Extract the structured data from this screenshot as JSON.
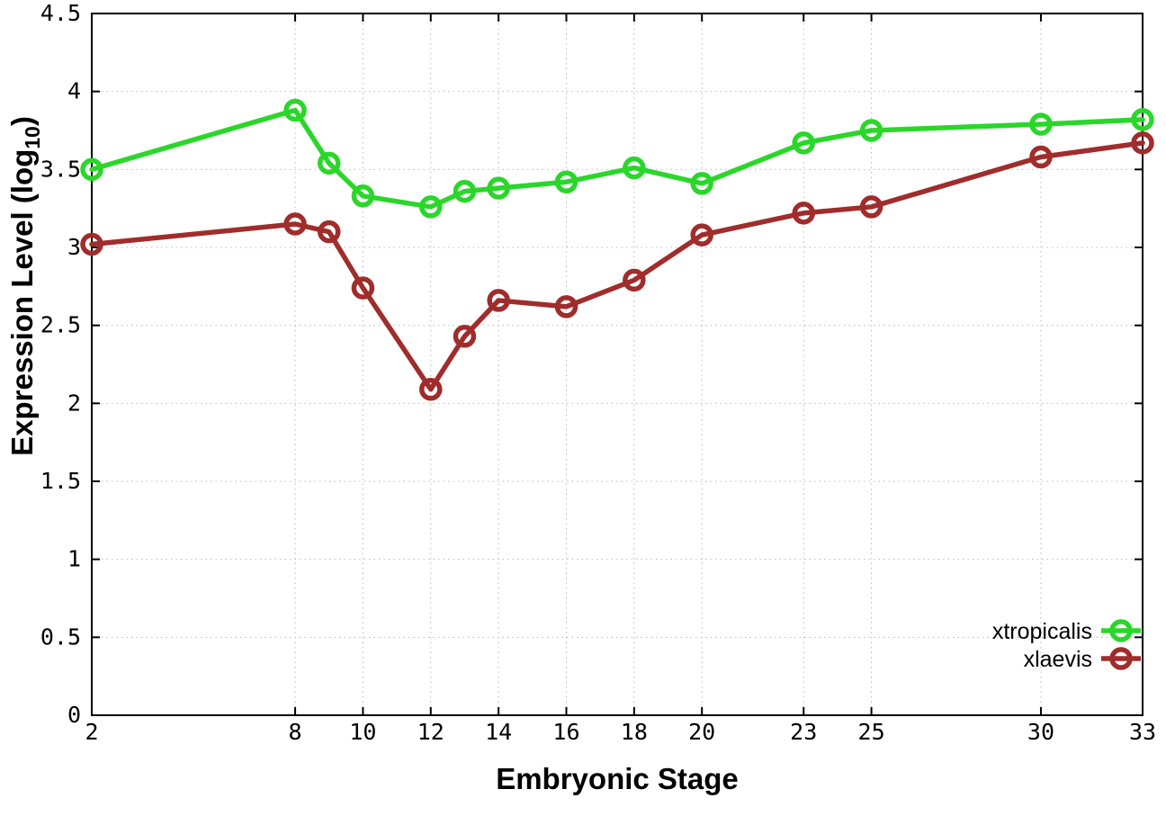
{
  "chart_data": {
    "type": "line",
    "title": "",
    "xlabel": "Embryonic Stage",
    "ylabel": "Expression Level (log10)",
    "ylabel_parts": {
      "prefix": "Expression Level (log",
      "sub": "10",
      "suffix": ")"
    },
    "x": [
      2,
      8,
      9,
      10,
      12,
      13,
      14,
      16,
      18,
      20,
      23,
      25,
      30,
      33
    ],
    "series": [
      {
        "name": "xtropicalis",
        "color": "#2bd62b",
        "marker": "open-circle",
        "values": [
          3.5,
          3.88,
          3.54,
          3.33,
          3.26,
          3.36,
          3.38,
          3.42,
          3.51,
          3.41,
          3.67,
          3.75,
          3.79,
          3.82
        ]
      },
      {
        "name": "xlaevis",
        "color": "#a02c2c",
        "marker": "open-circle",
        "values": [
          3.02,
          3.15,
          3.1,
          2.74,
          2.09,
          2.43,
          2.66,
          2.62,
          2.79,
          3.08,
          3.22,
          3.26,
          3.58,
          3.67
        ]
      }
    ],
    "x_ticks": [
      2,
      8,
      10,
      12,
      14,
      16,
      18,
      20,
      23,
      25,
      30,
      33
    ],
    "x_tick_labels": [
      "2",
      "8",
      "10",
      "12",
      "14",
      "16",
      "18",
      "20",
      "23",
      "25",
      "30",
      "33"
    ],
    "y_ticks": [
      0,
      0.5,
      1,
      1.5,
      2,
      2.5,
      3,
      3.5,
      4,
      4.5
    ],
    "y_tick_labels": [
      "0",
      "0.5",
      "1",
      "1.5",
      "2",
      "2.5",
      "3",
      "3.5",
      "4",
      "4.5"
    ],
    "xlim": [
      2,
      33
    ],
    "ylim": [
      0,
      4.5
    ],
    "grid": true,
    "grid_style": "dotted",
    "legend_position": "inside-bottom-right",
    "colors": {
      "background": "#ffffff",
      "border": "#000000",
      "grid": "#b9b9b9",
      "xtropicalis": "#2bd62b",
      "xlaevis": "#a02c2c"
    }
  }
}
